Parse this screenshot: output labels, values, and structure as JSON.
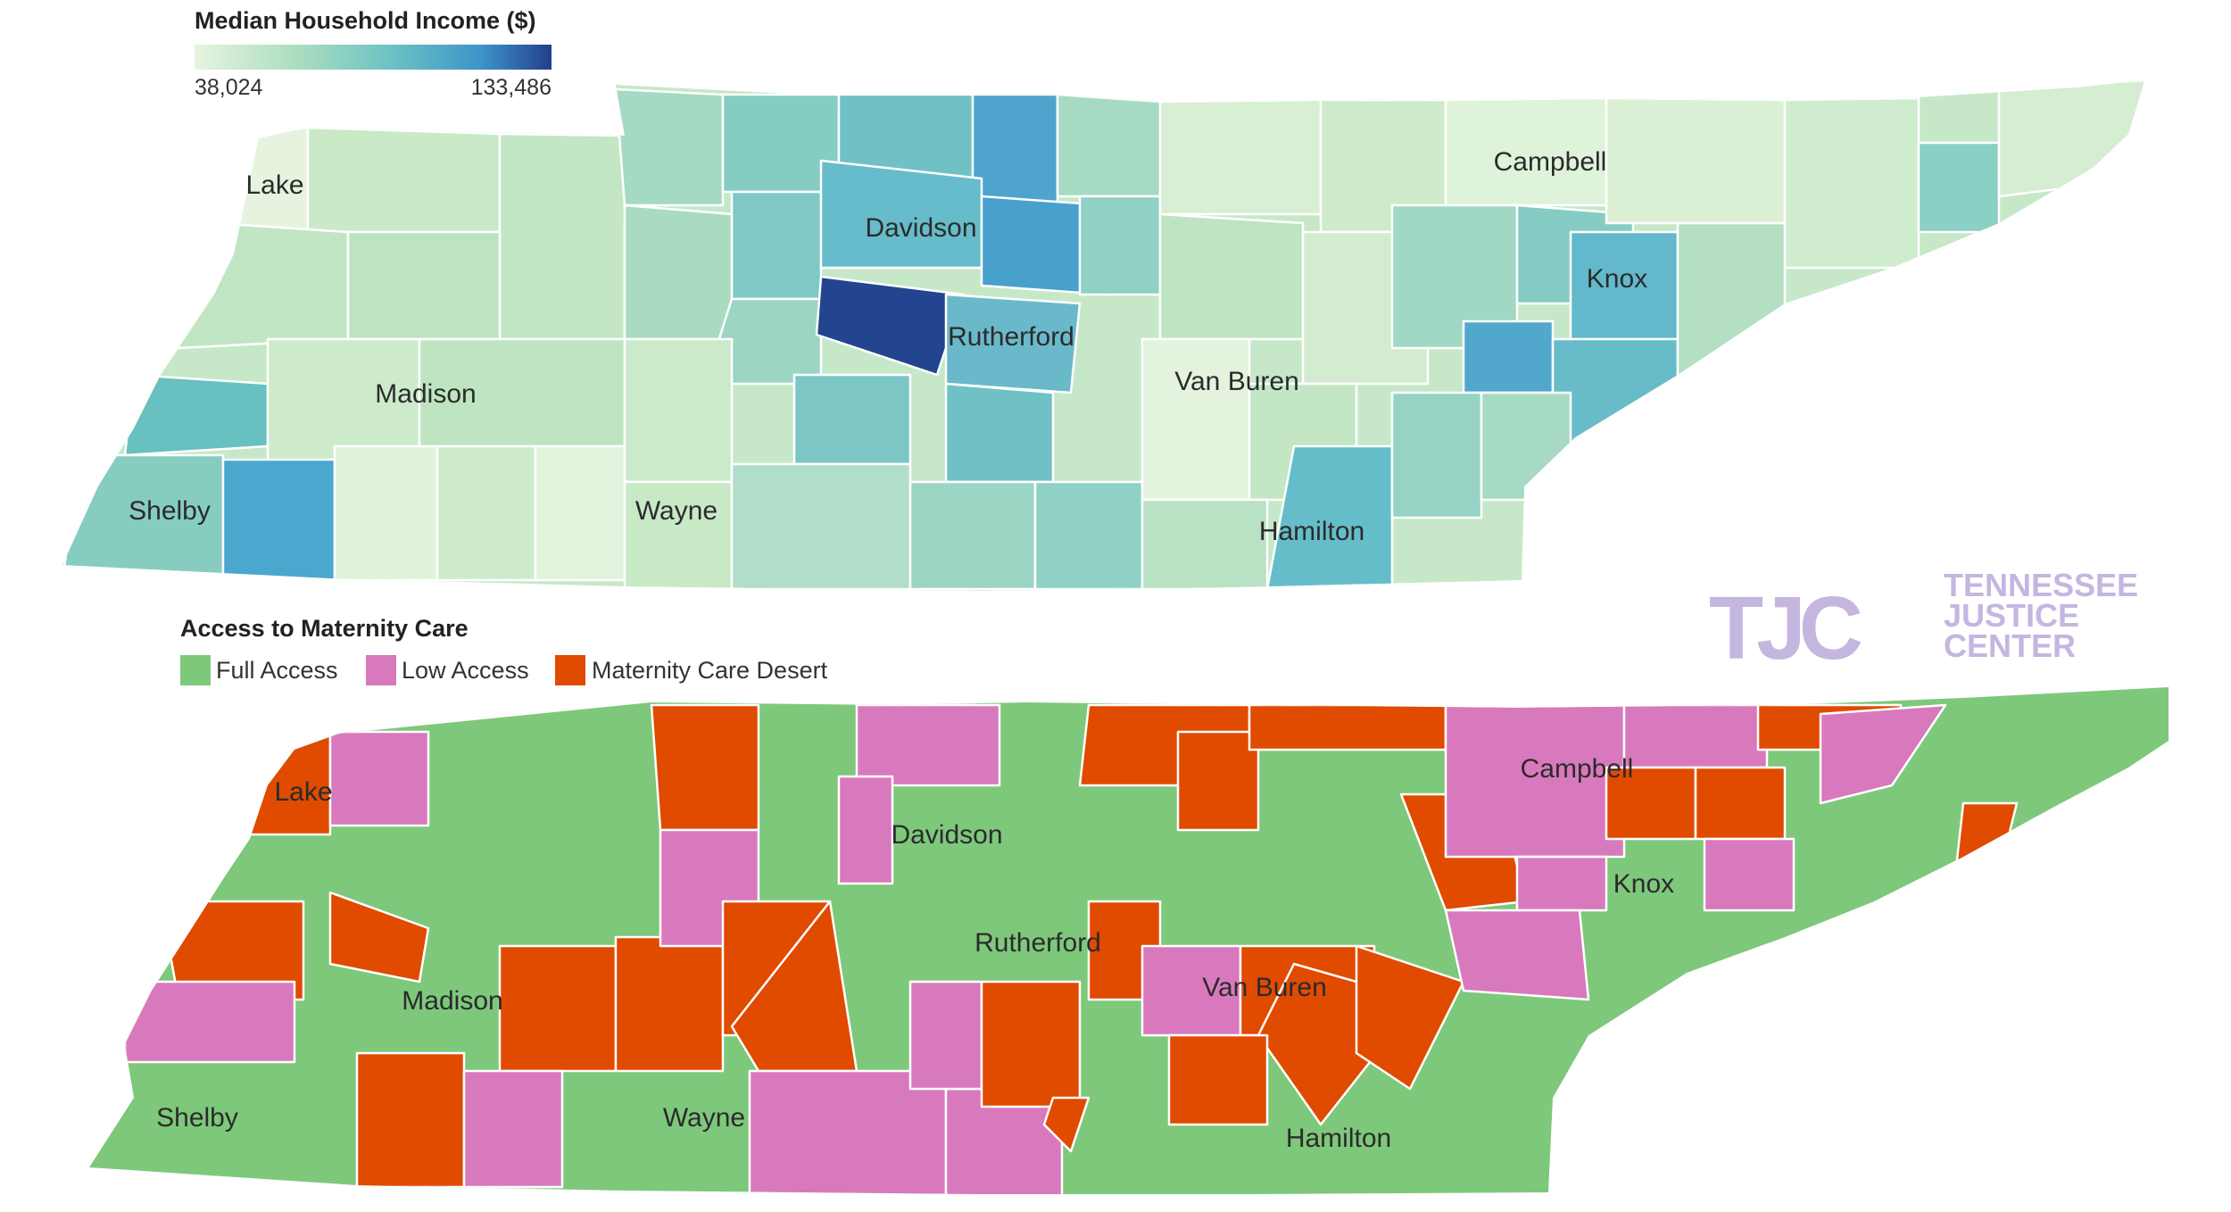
{
  "income_map": {
    "legend": {
      "title": "Median Household Income ($)",
      "min_label": "38,024",
      "max_label": "133,486",
      "min_value": 38024,
      "max_value": 133486,
      "colors": [
        "#e6f4df",
        "#a9dcc0",
        "#6cc2c4",
        "#3d95c9",
        "#243f8e"
      ]
    },
    "labels": {
      "lake": "Lake",
      "madison": "Madison",
      "shelby": "Shelby",
      "wayne": "Wayne",
      "davidson": "Davidson",
      "rutherford": "Rutherford",
      "van_buren": "Van Buren",
      "hamilton": "Hamilton",
      "campbell": "Campbell",
      "knox": "Knox"
    }
  },
  "maternity_map": {
    "legend": {
      "title": "Access to Maternity Care",
      "items": [
        {
          "label": "Full Access",
          "color": "#7ec87c"
        },
        {
          "label": "Low Access",
          "color": "#d979bd"
        },
        {
          "label": "Maternity Care Desert",
          "color": "#e04b00"
        }
      ]
    },
    "labels": {
      "lake": "Lake",
      "madison": "Madison",
      "shelby": "Shelby",
      "wayne": "Wayne",
      "davidson": "Davidson",
      "rutherford": "Rutherford",
      "van_buren": "Van Buren",
      "hamilton": "Hamilton",
      "campbell": "Campbell",
      "knox": "Knox"
    }
  },
  "logo": {
    "mark": "TJC",
    "line1": "TENNESSEE",
    "line2": "JUSTICE",
    "line3": "CENTER"
  }
}
